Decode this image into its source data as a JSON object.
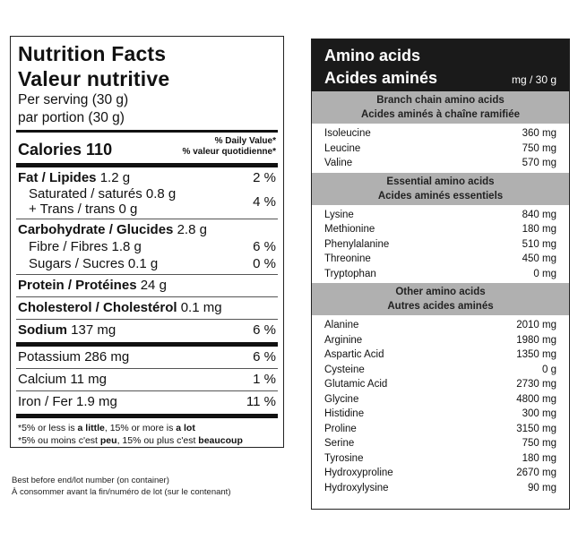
{
  "nutrition": {
    "title_en": "Nutrition Facts",
    "title_fr": "Valeur nutritive",
    "serving_en": "Per serving (30 g)",
    "serving_fr": "par portion (30 g)",
    "calories_label": "Calories 110",
    "dv_en": "% Daily Value*",
    "dv_fr": "% valeur quotidienne*",
    "fat_label": "Fat / Lipides",
    "fat_value": "1.2 g",
    "fat_pct": "2 %",
    "saturated": "Saturated / saturés 0.8 g",
    "trans": "+ Trans / trans 0 g",
    "sat_trans_pct": "4 %",
    "carb_label": "Carbohydrate / Glucides",
    "carb_value": "2.8 g",
    "fibre": "Fibre / Fibres 1.8 g",
    "fibre_pct": "6 %",
    "sugars": "Sugars / Sucres 0.1 g",
    "sugars_pct": "0 %",
    "protein_label": "Protein / Protéines",
    "protein_value": "24 g",
    "chol_label": "Cholesterol / Cholestérol",
    "chol_value": "0.1 mg",
    "sodium_label": "Sodium",
    "sodium_value": "137 mg",
    "sodium_pct": "6 %",
    "potassium": "Potassium 286 mg",
    "potassium_pct": "6 %",
    "calcium": "Calcium 11 mg",
    "calcium_pct": "1 %",
    "iron": "Iron / Fer 1.9 mg",
    "iron_pct": "11 %",
    "foot1_a": "*5% or less is ",
    "foot1_b": "a little",
    "foot1_c": ", 15% or more is ",
    "foot1_d": "a lot",
    "foot2_a": "*5% ou moins c'est ",
    "foot2_b": "peu",
    "foot2_c": ", 15% ou plus c'est ",
    "foot2_d": "beaucoup"
  },
  "best_before": {
    "line1": "Best before end/lot number (on container)",
    "line2": "À consommer avant la fin/numéro de lot (sur le contenant)"
  },
  "amino": {
    "title_en": "Amino acids",
    "title_fr": "Acides aminés",
    "unit": "mg / 30 g",
    "sections": [
      {
        "head_en": "Branch chain amino acids",
        "head_fr": "Acides aminés à chaîne ramifiée",
        "items": [
          {
            "name": "Isoleucine",
            "value": "360 mg"
          },
          {
            "name": "Leucine",
            "value": "750 mg"
          },
          {
            "name": "Valine",
            "value": "570 mg"
          }
        ]
      },
      {
        "head_en": "Essential amino acids",
        "head_fr": "Acides aminés essentiels",
        "items": [
          {
            "name": "Lysine",
            "value": "840 mg"
          },
          {
            "name": "Methionine",
            "value": "180 mg"
          },
          {
            "name": "Phenylalanine",
            "value": "510 mg"
          },
          {
            "name": "Threonine",
            "value": "450 mg"
          },
          {
            "name": "Tryptophan",
            "value": "0 mg"
          }
        ]
      },
      {
        "head_en": "Other amino acids",
        "head_fr": "Autres acides aminés",
        "items": [
          {
            "name": "Alanine",
            "value": "2010 mg"
          },
          {
            "name": "Arginine",
            "value": "1980 mg"
          },
          {
            "name": "Aspartic Acid",
            "value": "1350 mg"
          },
          {
            "name": "Cysteine",
            "value": "0 g"
          },
          {
            "name": "Glutamic Acid",
            "value": "2730 mg"
          },
          {
            "name": "Glycine",
            "value": "4800 mg"
          },
          {
            "name": "Histidine",
            "value": "300 mg"
          },
          {
            "name": "Proline",
            "value": "3150 mg"
          },
          {
            "name": "Serine",
            "value": "750 mg"
          },
          {
            "name": "Tyrosine",
            "value": "180 mg"
          },
          {
            "name": "Hydroxyproline",
            "value": "2670 mg"
          },
          {
            "name": "Hydroxylysine",
            "value": "90 mg"
          }
        ]
      }
    ]
  }
}
